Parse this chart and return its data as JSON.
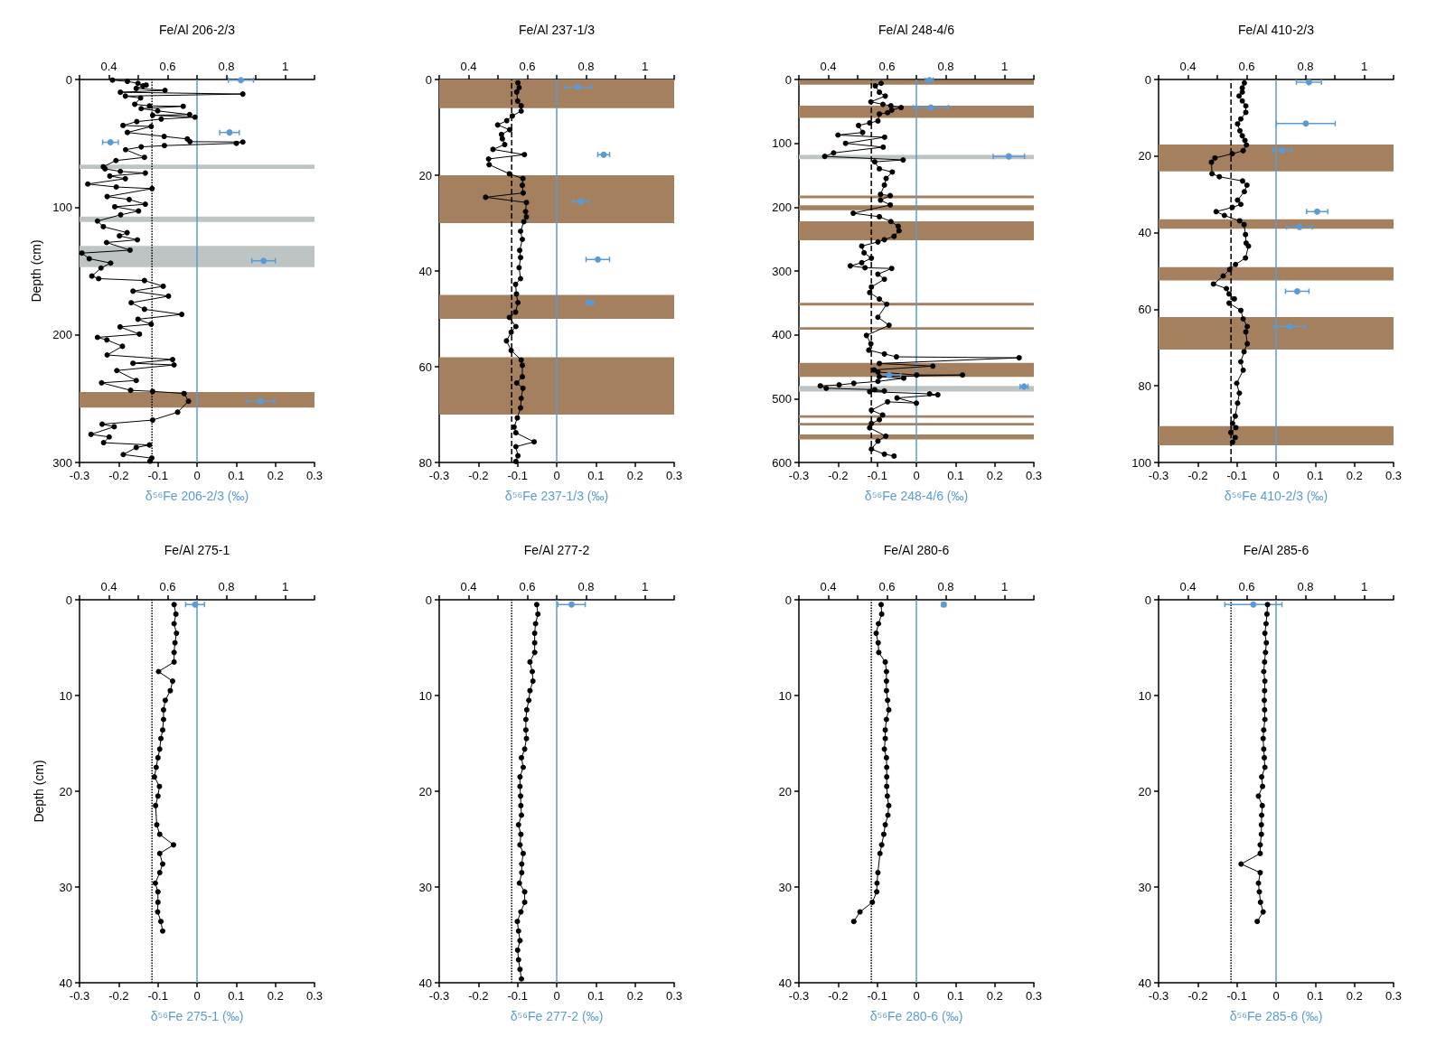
{
  "chart_data": [
    {
      "type": "line",
      "x2label": "Fe/Al 206-2/3",
      "xlabel": "δ⁵⁶Fe 206-2/3 (‰)",
      "ylabel": "Depth (cm)",
      "xlim": [
        -0.3,
        0.3
      ],
      "xticks": [
        -0.3,
        -0.2,
        -0.1,
        0,
        0.1,
        0.2,
        0.3
      ],
      "x2lim": [
        0.3,
        1.1
      ],
      "x2ticks": [
        {
          "value": 0.3,
          "label": null
        },
        0.4,
        {
          "value": 0.5,
          "label": null
        },
        0.6,
        {
          "value": 0.7,
          "label": null
        },
        0.8,
        {
          "value": 0.9,
          "label": null
        },
        1,
        {
          "value": 1.1,
          "label": null
        }
      ],
      "ylim": [
        300,
        0
      ],
      "yticks": [
        0,
        100,
        200,
        300
      ],
      "grid": false,
      "marker": "circle",
      "ref_lines": [
        {
          "axis": "x",
          "value": -0.115,
          "color": "#000000",
          "line_style": "dotted"
        },
        {
          "axis": "x",
          "value": 0,
          "color": "#5b9bd5",
          "line_style": "solid"
        }
      ],
      "bands": [
        {
          "axis": "y",
          "from": 66.6,
          "to": 70,
          "color": "#bec4c4"
        },
        {
          "axis": "y",
          "from": 107.3,
          "to": 111.7,
          "color": "#bec4c4"
        },
        {
          "axis": "y",
          "from": 130.3,
          "to": 147,
          "color": "#bec4c4"
        },
        {
          "axis": "y",
          "from": 244.8,
          "to": 257,
          "color": "#a5805f"
        }
      ],
      "series": [
        {
          "type": "line",
          "axis": "x2",
          "color": "#000000",
          "line_style": "solid",
          "x": [
            0.412,
            0.463,
            0.499,
            0.516,
            0.527,
            0.493,
            0.591,
            0.439,
            0.856,
            0.456,
            0.508,
            0.488,
            0.538,
            0.653,
            0.51,
            0.566,
            0.675,
            0.549,
            0.693,
            0.578,
            0.495,
            0.448,
            0.544,
            0.463,
            0.588,
            0.667,
            0.676,
            0.856,
            0.834,
            0.589,
            0.51,
            0.457,
            0.521,
            0.424,
            0.381,
            0.387,
            0.439,
            0.524,
            0.403,
            0.456,
            0.328,
            0.425,
            0.547,
            0.394,
            0.469,
            0.524,
            0.42,
            0.501,
            0.44,
            0.361,
            0.381,
            0.462,
            0.436,
            0.497,
            0.392,
            0.472,
            0.308,
            0.333,
            0.406,
            0.373,
            0.342,
            0.365,
            0.521,
            0.585,
            0.482,
            0.603,
            0.476,
            0.521,
            0.648,
            0.499,
            0.544,
            0.438,
            0.504,
            0.361,
            0.393,
            0.446,
            0.394,
            0.617,
            0.482,
            0.622,
            0.427,
            0.493,
            0.375,
            0.474,
            0.549,
            0.656,
            0.671,
            0.634,
            0.549,
            0.377,
            0.418,
            0.339,
            0.401,
            0.382,
            0.538,
            0.493,
            0.449,
            0.546,
            0.54
          ],
          "values": [
            0.5,
            1.5,
            3,
            5,
            4.4,
            7,
            8.5,
            10,
            11.4,
            13,
            14.5,
            19.4,
            20.7,
            21,
            22.8,
            24.6,
            27.5,
            28,
            29.5,
            31,
            33,
            36,
            36.8,
            41.5,
            44.6,
            46.6,
            48.7,
            49,
            50,
            51.8,
            52.8,
            55,
            61,
            63.5,
            68.4,
            70,
            72,
            73.3,
            75.6,
            77.7,
            81.9,
            84.2,
            85.5,
            91.7,
            94,
            97.7,
            99.7,
            103,
            106,
            110.9,
            115.3,
            120,
            122.5,
            125.6,
            127.7,
            133.7,
            136,
            140.4,
            143.8,
            147.7,
            154,
            156,
            157.5,
            162,
            165.8,
            169.7,
            174.9,
            180,
            184,
            187.8,
            191.7,
            193.8,
            199.5,
            202,
            204,
            209,
            215.8,
            219.4,
            222.3,
            223.6,
            228,
            235.8,
            237.6,
            243.5,
            244.3,
            246,
            252,
            260.6,
            266.8,
            270,
            272,
            278,
            280,
            284.5,
            286.3,
            288.3,
            293.8,
            296.6,
            299
          ]
        },
        {
          "type": "scatter",
          "color": "#5b9bd5",
          "x": [
            0.112,
            0.083,
            -0.221,
            0.17,
            0.163
          ],
          "values": [
            0.5,
            41.5,
            49.2,
            142,
            252
          ],
          "xerrors": [
            0.032,
            0.025,
            0.02,
            0.03,
            0.035
          ]
        }
      ]
    },
    {
      "type": "line",
      "x2label": "Fe/Al 237-1/3",
      "xlabel": "δ⁵⁶Fe 237-1/3 (‰)",
      "xlim": [
        -0.3,
        0.3
      ],
      "xticks": [
        -0.3,
        -0.2,
        -0.1,
        0,
        0.1,
        0.2,
        0.3
      ],
      "x2lim": [
        0.3,
        1.1
      ],
      "x2ticks": [
        {
          "value": 0.3,
          "label": null
        },
        0.4,
        {
          "value": 0.5,
          "label": null
        },
        0.6,
        {
          "value": 0.7,
          "label": null
        },
        0.8,
        {
          "value": 0.9,
          "label": null
        },
        1,
        {
          "value": 1.1,
          "label": null
        }
      ],
      "ylim": [
        80,
        0
      ],
      "yticks": [
        0,
        20,
        40,
        60,
        80
      ],
      "grid": false,
      "marker": "circle",
      "ref_lines": [
        {
          "axis": "x",
          "value": -0.115,
          "color": "#000000",
          "line_style": "dashed"
        },
        {
          "axis": "x",
          "value": 0,
          "color": "#5b9bd5",
          "line_style": "solid"
        }
      ],
      "bands": [
        {
          "axis": "y",
          "from": 0,
          "to": 6,
          "color": "#a5805f"
        },
        {
          "axis": "y",
          "from": 20,
          "to": 30,
          "color": "#a5805f"
        },
        {
          "axis": "y",
          "from": 45,
          "to": 50,
          "color": "#a5805f"
        },
        {
          "axis": "y",
          "from": 58,
          "to": 70,
          "color": "#a5805f"
        }
      ],
      "series": [
        {
          "type": "line",
          "axis": "x2",
          "color": "#000000",
          "line_style": "solid",
          "x": [
            0.568,
            0.572,
            0.564,
            0.567,
            0.579,
            0.579,
            0.549,
            0.53,
            0.499,
            0.54,
            0.512,
            0.515,
            0.523,
            0.483,
            0.59,
            0.468,
            0.47,
            0.539,
            0.585,
            0.583,
            0.586,
            0.458,
            0.597,
            0.594,
            0.597,
            0.588,
            0.577,
            0.583,
            0.574,
            0.577,
            0.572,
            0.577,
            0.56,
            0.563,
            0.568,
            0.56,
            0.539,
            0.561,
            0.545,
            0.529,
            0.545,
            0.579,
            0.583,
            0.583,
            0.564,
            0.585,
            0.579,
            0.577,
            0.566,
            0.555,
            0.561,
            0.623,
            0.561,
            0.568,
            0.561
          ],
          "values": [
            0.7,
            1.7,
            2.6,
            4.5,
            5.5,
            6.6,
            7.6,
            8.6,
            9.5,
            10.5,
            11.5,
            12.4,
            13.6,
            14.6,
            15.7,
            16.6,
            17.8,
            19.7,
            20.7,
            22.1,
            23.7,
            24.6,
            25.7,
            27.6,
            28.7,
            29.7,
            31.7,
            33.4,
            35.7,
            37.2,
            39.3,
            41.6,
            42.8,
            44.8,
            46.6,
            48.6,
            49.7,
            51.6,
            52.8,
            54.6,
            56.6,
            58.6,
            59.7,
            62.1,
            63.4,
            64.5,
            66.6,
            68.6,
            70.7,
            72.6,
            73.8,
            75.7,
            76.7,
            78.6,
            79.8
          ]
        },
        {
          "type": "scatter",
          "color": "#5b9bd5",
          "x": [
            0.054,
            0.12,
            0.062,
            0.105,
            0.085
          ],
          "values": [
            1.6,
            15.7,
            25.5,
            37.6,
            46.6
          ],
          "xerrors": [
            0.035,
            0.015,
            0.02,
            0.03,
            0.01
          ]
        }
      ]
    },
    {
      "type": "line",
      "x2label": "Fe/Al 248-4/6",
      "xlabel": "δ⁵⁶Fe 248-4/6 (‰)",
      "xlim": [
        -0.3,
        0.3
      ],
      "xticks": [
        -0.3,
        -0.2,
        -0.1,
        0,
        0.1,
        0.2,
        0.3
      ],
      "x2lim": [
        0.3,
        1.1
      ],
      "x2ticks": [
        {
          "value": 0.3,
          "label": null
        },
        0.4,
        {
          "value": 0.5,
          "label": null
        },
        0.6,
        {
          "value": 0.7,
          "label": null
        },
        0.8,
        {
          "value": 0.9,
          "label": null
        },
        1,
        {
          "value": 1.1,
          "label": null
        }
      ],
      "ylim": [
        600,
        0
      ],
      "yticks": [
        0,
        100,
        200,
        300,
        400,
        500,
        600
      ],
      "grid": false,
      "marker": "circle",
      "ref_lines": [
        {
          "axis": "x",
          "value": -0.115,
          "color": "#000000",
          "line_style": "dashed"
        },
        {
          "axis": "x",
          "value": 0,
          "color": "#5b9bd5",
          "line_style": "solid"
        }
      ],
      "bands": [
        {
          "axis": "y",
          "from": 1,
          "to": 8,
          "color": "#a5805f"
        },
        {
          "axis": "y",
          "from": 41,
          "to": 60,
          "color": "#a5805f"
        },
        {
          "axis": "y",
          "from": 118,
          "to": 125,
          "color": "#bec4c4"
        },
        {
          "axis": "y",
          "from": 182,
          "to": 186,
          "color": "#a5805f"
        },
        {
          "axis": "y",
          "from": 197,
          "to": 205,
          "color": "#a5805f"
        },
        {
          "axis": "y",
          "from": 222,
          "to": 252,
          "color": "#a5805f"
        },
        {
          "axis": "y",
          "from": 350,
          "to": 354,
          "color": "#a5805f"
        },
        {
          "axis": "y",
          "from": 388,
          "to": 392,
          "color": "#a5805f"
        },
        {
          "axis": "y",
          "from": 444,
          "to": 466,
          "color": "#a5805f"
        },
        {
          "axis": "y",
          "from": 480,
          "to": 489,
          "color": "#bec4c4"
        },
        {
          "axis": "y",
          "from": 526,
          "to": 530,
          "color": "#a5805f"
        },
        {
          "axis": "y",
          "from": 538,
          "to": 542,
          "color": "#a5805f"
        },
        {
          "axis": "y",
          "from": 556,
          "to": 564,
          "color": "#a5805f"
        }
      ],
      "series": [
        {
          "type": "line",
          "axis": "x2",
          "color": "#000000",
          "line_style": "solid",
          "x": [
            0.58,
            0.56,
            0.574,
            0.594,
            0.545,
            0.586,
            0.613,
            0.648,
            0.616,
            0.602,
            0.574,
            0.569,
            0.541,
            0.503,
            0.517,
            0.433,
            0.592,
            0.459,
            0.587,
            0.418,
            0.388,
            0.655,
            0.558,
            0.574,
            0.618,
            0.597,
            0.591,
            0.578,
            0.611,
            0.578,
            0.611,
            0.485,
            0.574,
            0.613,
            0.638,
            0.641,
            0.624,
            0.591,
            0.569,
            0.514,
            0.522,
            0.547,
            0.514,
            0.475,
            0.525,
            0.616,
            0.569,
            0.591,
            0.547,
            0.541,
            0.574,
            0.599,
            0.569,
            0.607,
            0.53,
            0.545,
            0.538,
            0.591,
            0.632,
            1.05,
            0.574,
            0.756,
            0.556,
            0.569,
            0.701,
            0.857,
            0.574,
            0.657,
            0.569,
            0.487,
            0.437,
            0.373,
            0.393,
            0.558,
            0.591,
            0.541,
            0.745,
            0.773,
            0.634,
            0.7,
            0.602,
            0.547,
            0.585,
            0.574,
            0.547,
            0.541,
            0.596,
            0.569,
            0.547,
            0.591,
            0.624
          ],
          "values": [
            6,
            10,
            20,
            26,
            35,
            39,
            41,
            44,
            48,
            52,
            54,
            65,
            68,
            72,
            83,
            87,
            90.5,
            100,
            106,
            115,
            120.5,
            126,
            129,
            140,
            145,
            155,
            165.5,
            180,
            182,
            189,
            196.6,
            209.5,
            215,
            222.5,
            230,
            237,
            245.7,
            251,
            254.5,
            261,
            271.6,
            280,
            287,
            292,
            295,
            296,
            305,
            313,
            325,
            333.7,
            344,
            352,
            372.5,
            385,
            401,
            414,
            424,
            430,
            434.5,
            436,
            445,
            449,
            455,
            458.4,
            463,
            463,
            465.6,
            468,
            473,
            476,
            478.5,
            480,
            483.7,
            486,
            488,
            489,
            492.5,
            494,
            499,
            507,
            505,
            518,
            525.6,
            533,
            539,
            545.8,
            558.7,
            566.5,
            579,
            587,
            590
          ]
        },
        {
          "type": "scatter",
          "color": "#5b9bd5",
          "x": [
            0.033,
            0.037,
            0.236,
            -0.07,
            0.275
          ],
          "values": [
            1,
            44,
            120.5,
            463,
            481
          ],
          "xerrors": [
            0.01,
            0.045,
            0.04,
            0.03,
            0.01
          ]
        }
      ]
    },
    {
      "type": "line",
      "x2label": "Fe/Al 410-2/3",
      "xlabel": "δ⁵⁶Fe 410-2/3 (‰)",
      "xlim": [
        -0.3,
        0.3
      ],
      "xticks": [
        -0.3,
        -0.2,
        -0.1,
        0,
        0.1,
        0.2,
        0.3
      ],
      "x2lim": [
        0.3,
        1.1
      ],
      "x2ticks": [
        {
          "value": 0.3,
          "label": null
        },
        0.4,
        {
          "value": 0.5,
          "label": null
        },
        0.6,
        {
          "value": 0.7,
          "label": null
        },
        0.8,
        {
          "value": 0.9,
          "label": null
        },
        1,
        {
          "value": 1.1,
          "label": null
        }
      ],
      "ylim": [
        100,
        0
      ],
      "yticks": [
        0,
        20,
        40,
        60,
        80,
        100
      ],
      "grid": false,
      "marker": "circle",
      "ref_lines": [
        {
          "axis": "x",
          "value": -0.115,
          "color": "#000000",
          "line_style": "dashed"
        },
        {
          "axis": "x",
          "value": 0,
          "color": "#5b9bd5",
          "line_style": "solid"
        }
      ],
      "bands": [
        {
          "axis": "y",
          "from": 17,
          "to": 24,
          "color": "#a5805f"
        },
        {
          "axis": "y",
          "from": 36.5,
          "to": 39,
          "color": "#a5805f"
        },
        {
          "axis": "y",
          "from": 49,
          "to": 52.5,
          "color": "#a5805f"
        },
        {
          "axis": "y",
          "from": 62,
          "to": 70.5,
          "color": "#a5805f"
        },
        {
          "axis": "y",
          "from": 90.5,
          "to": 95.5,
          "color": "#a5805f"
        }
      ],
      "series": [
        {
          "type": "line",
          "axis": "x2",
          "color": "#000000",
          "line_style": "solid",
          "x": [
            0.592,
            0.585,
            0.585,
            0.574,
            0.585,
            0.597,
            0.597,
            0.58,
            0.569,
            0.577,
            0.585,
            0.594,
            0.599,
            0.588,
            0.551,
            0.492,
            0.48,
            0.482,
            0.507,
            0.586,
            0.601,
            0.592,
            0.569,
            0.58,
            0.551,
            0.496,
            0.524,
            0.576,
            0.591,
            0.596,
            0.598,
            0.606,
            0.596,
            0.562,
            0.542,
            0.52,
            0.487,
            0.531,
            0.54,
            0.558,
            0.54,
            0.58,
            0.588,
            0.602,
            0.597,
            0.602,
            0.591,
            0.58,
            0.588,
            0.566,
            0.575,
            0.569,
            0.561,
            0.552,
            0.563,
            0.546,
            0.561,
            0.552
          ],
          "values": [
            0.9,
            2.2,
            3.3,
            4.3,
            5.6,
            6.9,
            8.6,
            10.3,
            11.6,
            13.4,
            14.7,
            15.9,
            17.1,
            18.6,
            19.4,
            20.5,
            21.6,
            24.6,
            25.4,
            26.5,
            27.6,
            29.3,
            31.5,
            32.6,
            33.4,
            34.5,
            35.5,
            36.9,
            37.9,
            40.5,
            42.7,
            43.5,
            46.6,
            48.3,
            49.6,
            51.3,
            53.4,
            54.6,
            56,
            57.3,
            58.4,
            60.3,
            62.5,
            64.5,
            65.9,
            69,
            71.1,
            73.7,
            75.9,
            79.3,
            81.9,
            84.5,
            87.9,
            89.8,
            90.9,
            92.2,
            93.5,
            94.7
          ]
        },
        {
          "type": "scatter",
          "color": "#5b9bd5",
          "x": [
            0.084,
            0.076,
            0.016,
            0.105,
            0.06,
            0.054,
            0.035
          ],
          "values": [
            0.7,
            11.5,
            18.5,
            34.5,
            38.5,
            55.3,
            64.5
          ],
          "xerrors": [
            0.032,
            0.075,
            0.024,
            0.027,
            0.033,
            0.03,
            0.04
          ]
        }
      ]
    },
    {
      "type": "line",
      "x2label": "Fe/Al 275-1",
      "xlabel": "δ⁵⁶Fe 275-1 (‰)",
      "ylabel": "Depth (cm)",
      "xlim": [
        -0.3,
        0.3
      ],
      "xticks": [
        -0.3,
        -0.2,
        -0.1,
        0,
        0.1,
        0.2,
        0.3
      ],
      "x2lim": [
        0.3,
        1.1
      ],
      "x2ticks": [
        {
          "value": 0.3,
          "label": null
        },
        0.4,
        {
          "value": 0.5,
          "label": null
        },
        0.6,
        {
          "value": 0.7,
          "label": null
        },
        0.8,
        {
          "value": 0.9,
          "label": null
        },
        1,
        {
          "value": 1.1,
          "label": null
        }
      ],
      "ylim": [
        40,
        0
      ],
      "yticks": [
        0,
        10,
        20,
        30,
        40
      ],
      "grid": false,
      "marker": "circle",
      "ref_lines": [
        {
          "axis": "x",
          "value": -0.115,
          "color": "#000000",
          "line_style": "dotted"
        },
        {
          "axis": "x",
          "value": 0,
          "color": "#5b9bd5",
          "line_style": "solid"
        }
      ],
      "series": [
        {
          "type": "line",
          "axis": "x2",
          "color": "#000000",
          "line_style": "solid",
          "x": [
            0.622,
            0.628,
            0.622,
            0.63,
            0.625,
            0.622,
            0.622,
            0.569,
            0.617,
            0.609,
            0.592,
            0.586,
            0.586,
            0.583,
            0.577,
            0.573,
            0.567,
            0.561,
            0.555,
            0.572,
            0.567,
            0.559,
            0.563,
            0.573,
            0.62,
            0.573,
            0.583,
            0.573,
            0.558,
            0.567,
            0.567,
            0.566,
            0.577,
            0.583
          ],
          "values": [
            0.5,
            1.5,
            2.5,
            3.5,
            4.5,
            5.5,
            6.5,
            7.5,
            8.5,
            9.5,
            10.5,
            11.5,
            12.5,
            13.6,
            14.5,
            15.6,
            16.5,
            17.5,
            18.5,
            19.5,
            20.5,
            21.5,
            23.5,
            24.5,
            25.6,
            26.5,
            27.6,
            28.5,
            29.6,
            30.5,
            31.6,
            32.6,
            33.6,
            34.6
          ]
        },
        {
          "type": "scatter",
          "color": "#5b9bd5",
          "x": [
            -0.005
          ],
          "values": [
            0.5
          ],
          "xerrors": [
            0.024
          ]
        }
      ]
    },
    {
      "type": "line",
      "x2label": "Fe/Al 277-2",
      "xlabel": "δ⁵⁶Fe 277-2 (‰)",
      "xlim": [
        -0.3,
        0.3
      ],
      "xticks": [
        -0.3,
        -0.2,
        -0.1,
        0,
        0.1,
        0.2,
        0.3
      ],
      "x2lim": [
        0.3,
        1.1
      ],
      "x2ticks": [
        {
          "value": 0.3,
          "label": null
        },
        0.4,
        {
          "value": 0.5,
          "label": null
        },
        0.6,
        {
          "value": 0.7,
          "label": null
        },
        0.8,
        {
          "value": 0.9,
          "label": null
        },
        1,
        {
          "value": 1.1,
          "label": null
        }
      ],
      "ylim": [
        40,
        0
      ],
      "yticks": [
        0,
        10,
        20,
        30,
        40
      ],
      "grid": false,
      "marker": "circle",
      "ref_lines": [
        {
          "axis": "x",
          "value": -0.115,
          "color": "#000000",
          "line_style": "dotted"
        },
        {
          "axis": "x",
          "value": 0,
          "color": "#5b9bd5",
          "line_style": "solid"
        }
      ],
      "series": [
        {
          "type": "line",
          "axis": "x2",
          "color": "#000000",
          "line_style": "solid",
          "x": [
            0.632,
            0.636,
            0.628,
            0.625,
            0.625,
            0.625,
            0.609,
            0.617,
            0.619,
            0.609,
            0.605,
            0.598,
            0.595,
            0.595,
            0.597,
            0.591,
            0.58,
            0.586,
            0.575,
            0.575,
            0.577,
            0.578,
            0.58,
            0.57,
            0.578,
            0.575,
            0.586,
            0.581,
            0.581,
            0.573,
            0.591,
            0.591,
            0.578,
            0.566,
            0.57,
            0.575,
            0.567,
            0.57,
            0.575,
            0.58
          ],
          "values": [
            0.5,
            1.5,
            2.5,
            3.5,
            4.5,
            5.5,
            6.5,
            7.5,
            8.5,
            9.5,
            10.5,
            11.5,
            12.5,
            13.6,
            14.5,
            15.6,
            16.5,
            17.5,
            18.5,
            19.5,
            20.5,
            21.5,
            22.5,
            23.5,
            24.5,
            25.6,
            26.5,
            27.6,
            28.5,
            29.6,
            30.5,
            31.6,
            32.6,
            33.6,
            34.6,
            35.6,
            36.6,
            37.6,
            38.6,
            39.6
          ]
        },
        {
          "type": "scatter",
          "color": "#5b9bd5",
          "x": [
            0.038
          ],
          "values": [
            0.5
          ],
          "xerrors": [
            0.035
          ]
        }
      ]
    },
    {
      "type": "line",
      "x2label": "Fe/Al 280-6",
      "xlabel": "δ⁵⁶Fe 280-6 (‰)",
      "xlim": [
        -0.3,
        0.3
      ],
      "xticks": [
        -0.3,
        -0.2,
        -0.1,
        0,
        0.1,
        0.2,
        0.3
      ],
      "x2lim": [
        0.3,
        1.1
      ],
      "x2ticks": [
        {
          "value": 0.3,
          "label": null
        },
        0.4,
        {
          "value": 0.5,
          "label": null
        },
        0.6,
        {
          "value": 0.7,
          "label": null
        },
        0.8,
        {
          "value": 0.9,
          "label": null
        },
        1,
        {
          "value": 1.1,
          "label": null
        }
      ],
      "ylim": [
        40,
        0
      ],
      "yticks": [
        0,
        10,
        20,
        30,
        40
      ],
      "grid": false,
      "marker": "circle",
      "ref_lines": [
        {
          "axis": "x",
          "value": -0.115,
          "color": "#000000",
          "line_style": "dotted"
        },
        {
          "axis": "x",
          "value": 0,
          "color": "#5b9bd5",
          "line_style": "solid"
        }
      ],
      "series": [
        {
          "type": "line",
          "axis": "x2",
          "color": "#000000",
          "line_style": "solid",
          "x": [
            0.58,
            0.582,
            0.571,
            0.563,
            0.57,
            0.572,
            0.594,
            0.598,
            0.598,
            0.598,
            0.602,
            0.606,
            0.598,
            0.594,
            0.594,
            0.591,
            0.598,
            0.599,
            0.599,
            0.599,
            0.601,
            0.606,
            0.603,
            0.594,
            0.589,
            0.582,
            0.576,
            0.569,
            0.566,
            0.565,
            0.55,
            0.508,
            0.487
          ],
          "values": [
            0.5,
            1.5,
            2.5,
            3.5,
            4.5,
            5.5,
            6.5,
            7.5,
            8.5,
            9.5,
            10.5,
            11.5,
            12.5,
            13.6,
            14.5,
            15.6,
            16.5,
            17.5,
            18.5,
            19.5,
            20.5,
            21.5,
            22.5,
            23.5,
            24.5,
            25.6,
            26.5,
            28.5,
            29.6,
            30.5,
            31.6,
            32.6,
            33.6
          ]
        },
        {
          "type": "scatter",
          "color": "#5b9bd5",
          "x": [
            0.07
          ],
          "values": [
            0.5
          ],
          "xerrors": [
            0.005
          ]
        }
      ]
    },
    {
      "type": "line",
      "x2label": "Fe/Al 285-6",
      "xlabel": "δ⁵⁶Fe 285-6 (‰)",
      "xlim": [
        -0.3,
        0.3
      ],
      "xticks": [
        -0.3,
        -0.2,
        -0.1,
        0,
        0.1,
        0.2,
        0.3
      ],
      "x2lim": [
        0.3,
        1.1
      ],
      "x2ticks": [
        {
          "value": 0.3,
          "label": null
        },
        0.4,
        {
          "value": 0.5,
          "label": null
        },
        0.6,
        {
          "value": 0.7,
          "label": null
        },
        0.8,
        {
          "value": 0.9,
          "label": null
        },
        1,
        {
          "value": 1.1,
          "label": null
        }
      ],
      "ylim": [
        40,
        0
      ],
      "yticks": [
        0,
        10,
        20,
        30,
        40
      ],
      "grid": false,
      "marker": "circle",
      "ref_lines": [
        {
          "axis": "x",
          "value": -0.115,
          "color": "#000000",
          "line_style": "dotted"
        },
        {
          "axis": "x",
          "value": 0,
          "color": "#5b9bd5",
          "line_style": "solid"
        }
      ],
      "series": [
        {
          "type": "line",
          "axis": "x2",
          "color": "#000000",
          "line_style": "solid",
          "x": [
            0.671,
            0.669,
            0.666,
            0.662,
            0.667,
            0.664,
            0.661,
            0.658,
            0.662,
            0.661,
            0.66,
            0.661,
            0.662,
            0.658,
            0.656,
            0.658,
            0.66,
            0.662,
            0.651,
            0.654,
            0.64,
            0.653,
            0.651,
            0.65,
            0.65,
            0.646,
            0.646,
            0.581,
            0.646,
            0.64,
            0.643,
            0.647,
            0.656,
            0.636
          ],
          "values": [
            0.5,
            1.5,
            2.5,
            3.5,
            4.5,
            5.5,
            6.5,
            7.5,
            8.5,
            9.5,
            10.5,
            11.5,
            12.5,
            13.6,
            14.5,
            15.6,
            16.5,
            17.5,
            18.5,
            19.5,
            20.5,
            21.5,
            22.5,
            23.5,
            24.5,
            25.6,
            26.5,
            27.6,
            28.5,
            29.6,
            30.5,
            31.6,
            32.6,
            33.6
          ]
        },
        {
          "type": "scatter",
          "color": "#5b9bd5",
          "x": [
            -0.058
          ],
          "values": [
            0.5
          ],
          "xerrors": [
            0.073
          ]
        }
      ]
    }
  ]
}
